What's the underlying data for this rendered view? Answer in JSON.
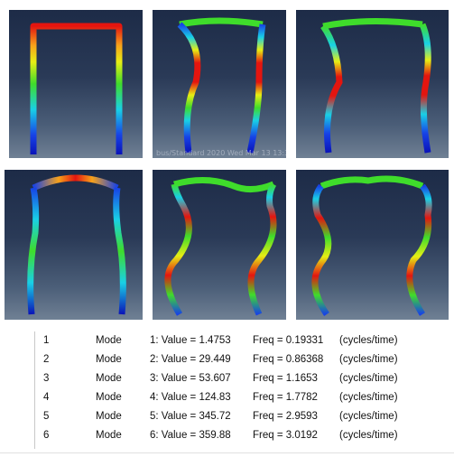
{
  "panels": [
    {
      "stamp": ""
    },
    {
      "stamp": "bus/Standard 2020   Wed Mar 13 13:35:33"
    },
    {
      "stamp": ""
    },
    {
      "stamp": ""
    },
    {
      "stamp": ""
    },
    {
      "stamp": ""
    }
  ],
  "colors": {
    "red": "#e4150f",
    "orange": "#f7a21a",
    "yellow": "#e6ee14",
    "green": "#3fdc2b",
    "cyan": "#19d0e6",
    "blue": "#1742e6",
    "navy": "#0a13b8"
  },
  "modes": [
    {
      "index": "1",
      "label": "Mode",
      "value": "1: Value =  1.4753",
      "freq": "Freq =  0.19331",
      "unit": "(cycles/time)"
    },
    {
      "index": "2",
      "label": "Mode",
      "value": "2: Value =  29.449",
      "freq": "Freq =  0.86368",
      "unit": "(cycles/time)"
    },
    {
      "index": "3",
      "label": "Mode",
      "value": "3: Value =  53.607",
      "freq": "Freq =  1.1653",
      "unit": "(cycles/time)"
    },
    {
      "index": "4",
      "label": "Mode",
      "value": "4: Value =  124.83",
      "freq": "Freq =  1.7782",
      "unit": "(cycles/time)"
    },
    {
      "index": "5",
      "label": "Mode",
      "value": "5: Value =  345.72",
      "freq": "Freq =  2.9593",
      "unit": "(cycles/time)"
    },
    {
      "index": "6",
      "label": "Mode",
      "value": "6: Value =  359.88",
      "freq": "Freq =  3.0192",
      "unit": "(cycles/time)"
    }
  ]
}
